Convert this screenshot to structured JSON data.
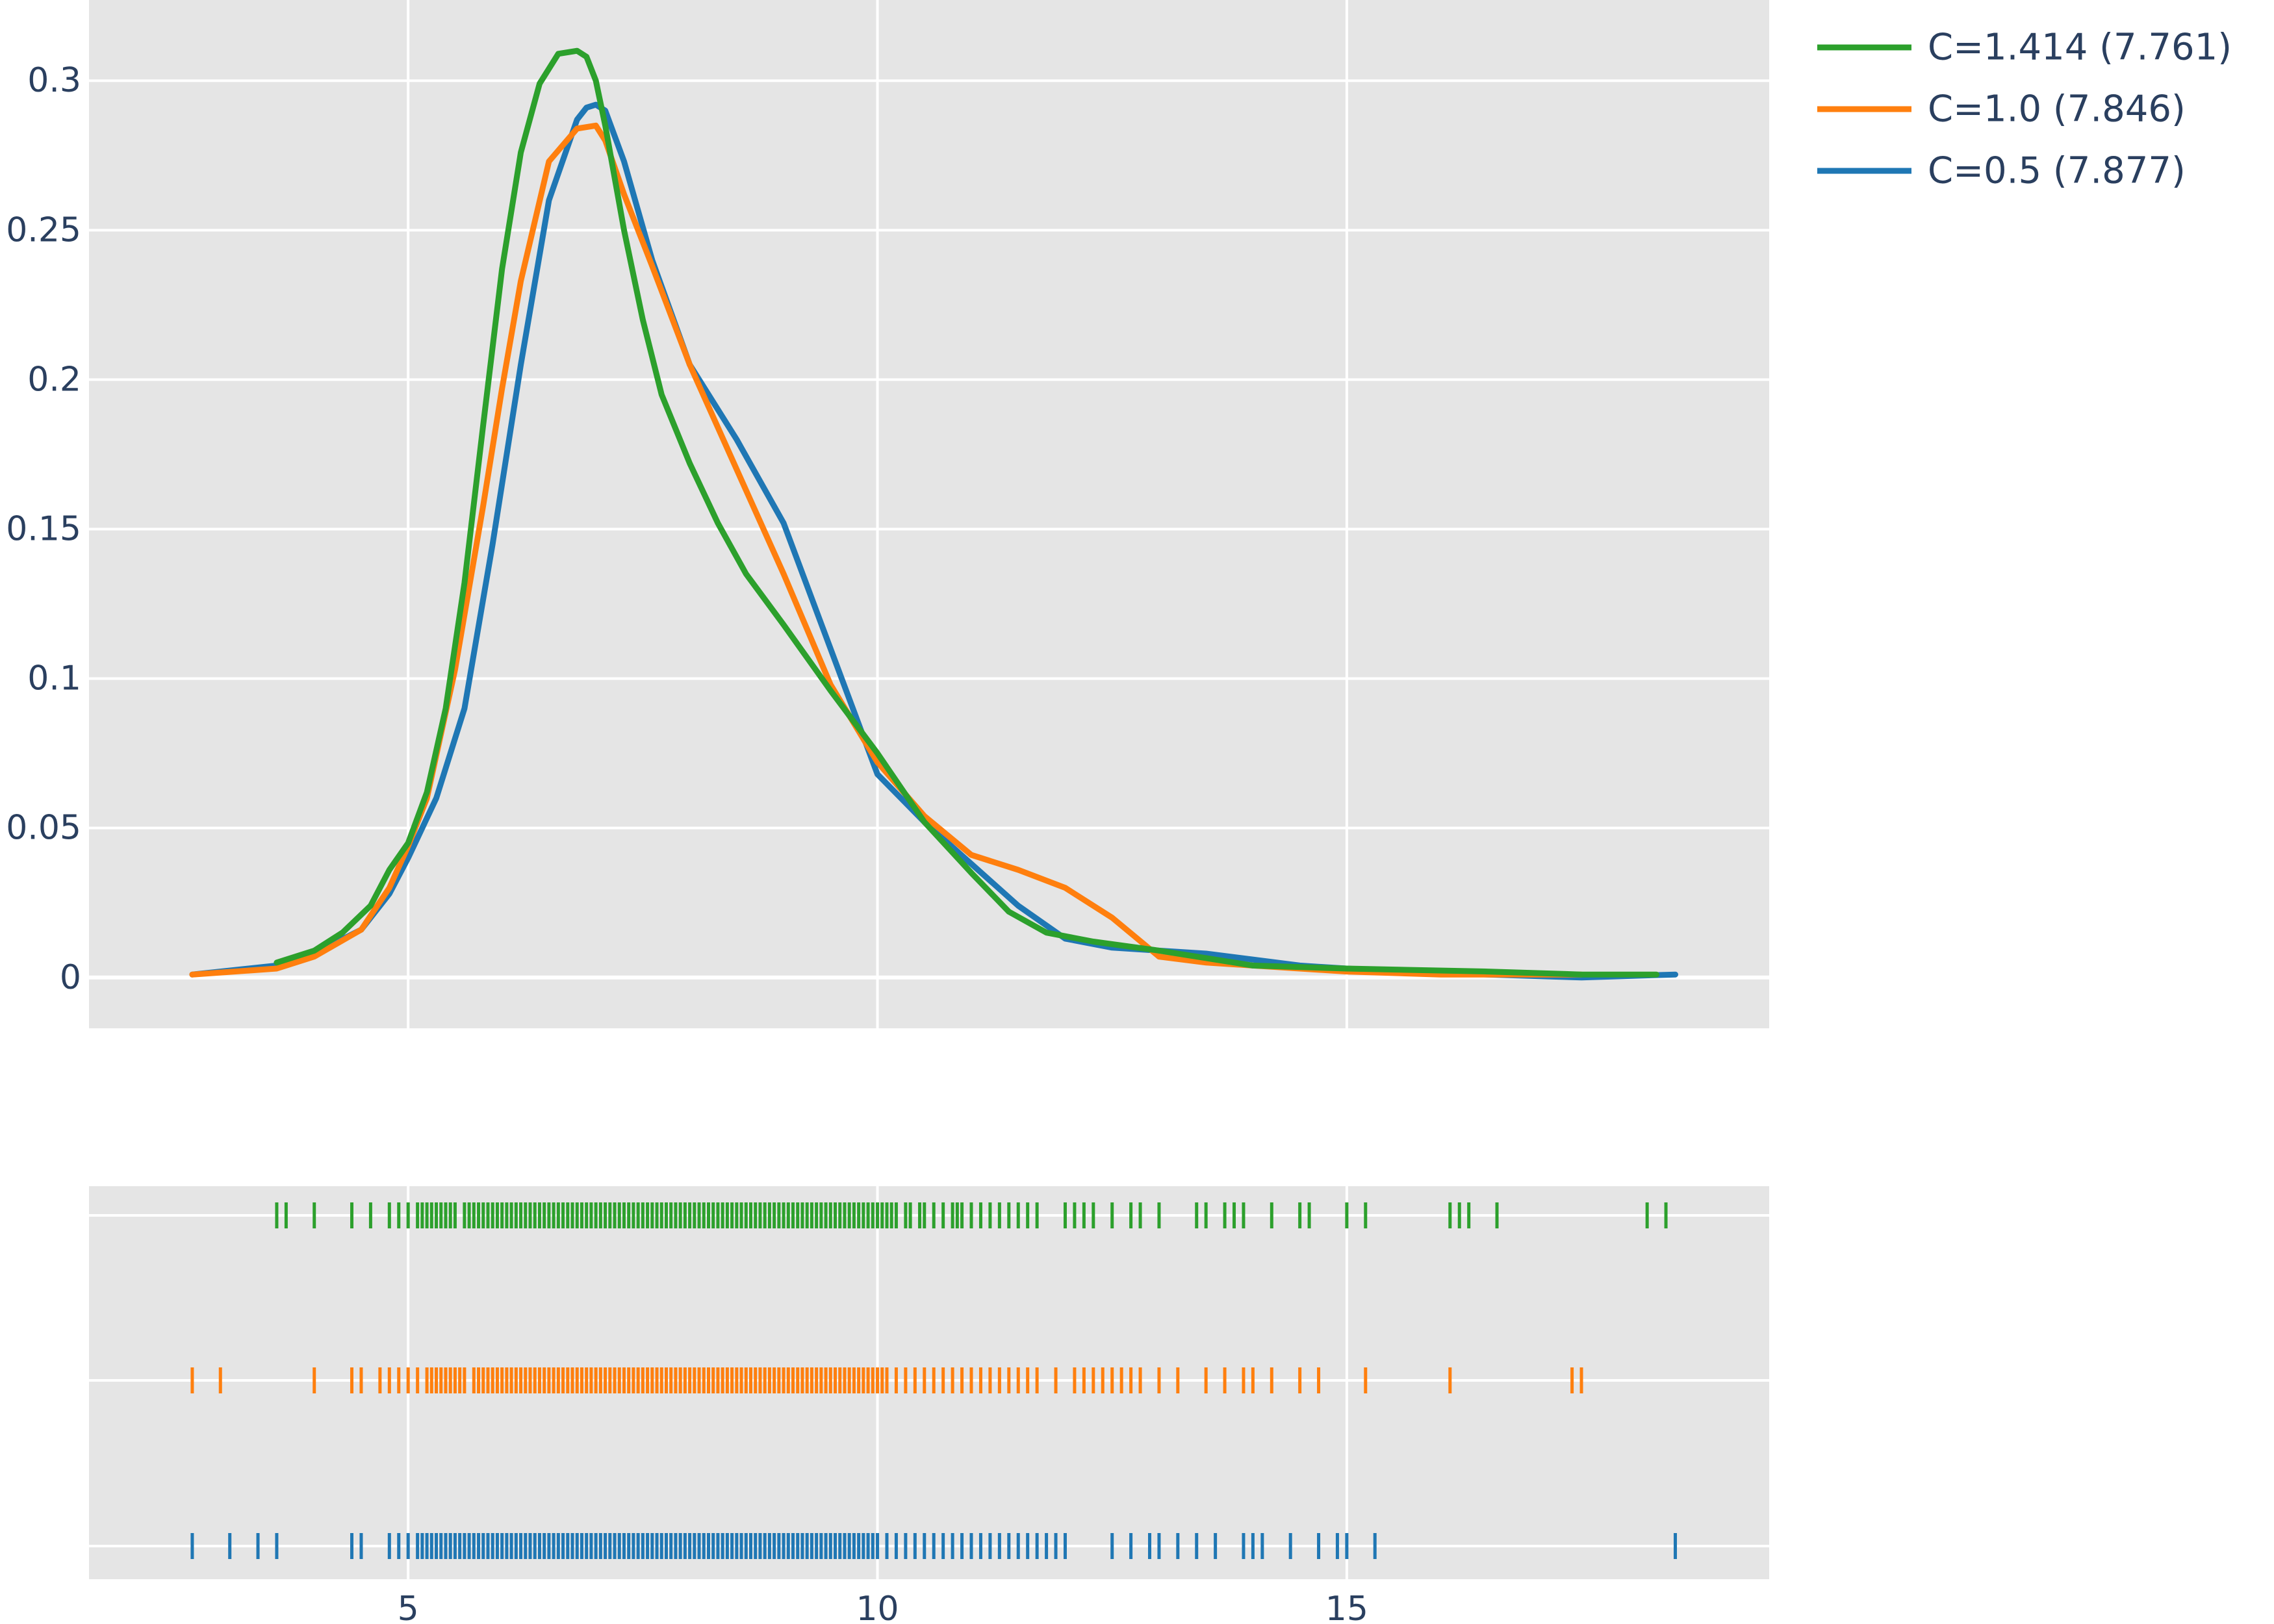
{
  "chart_data": {
    "type": "line",
    "title": "",
    "xlabel": "",
    "ylabel": "",
    "xlim": [
      1.6,
      19.5
    ],
    "ylim": [
      -0.017,
      0.327
    ],
    "grid": true,
    "legend_position": "top-right, outside plot",
    "x_ticks": [
      5,
      10,
      15
    ],
    "x_tick_labels": [
      "5",
      "10",
      "15"
    ],
    "y_ticks": [
      0,
      0.05,
      0.1,
      0.15,
      0.2,
      0.25,
      0.3
    ],
    "y_tick_labels": [
      "0",
      "0.05",
      "0.1",
      "0.15",
      "0.2",
      "0.25",
      "0.3"
    ],
    "series": [
      {
        "name": "C=1.414 (7.761)",
        "color": "#2ca02c",
        "x": [
          3.6,
          4.0,
          4.3,
          4.6,
          4.8,
          5.0,
          5.2,
          5.4,
          5.6,
          5.8,
          6.0,
          6.2,
          6.4,
          6.6,
          6.8,
          6.9,
          7.0,
          7.1,
          7.3,
          7.5,
          7.7,
          8.0,
          8.3,
          8.6,
          9.0,
          9.5,
          10.0,
          10.5,
          11.0,
          11.4,
          11.8,
          12.3,
          13.0,
          14.0,
          15.0,
          16.5,
          17.5,
          18.3
        ],
        "y": [
          0.005,
          0.009,
          0.015,
          0.024,
          0.036,
          0.045,
          0.062,
          0.09,
          0.132,
          0.185,
          0.237,
          0.276,
          0.299,
          0.309,
          0.31,
          0.308,
          0.3,
          0.285,
          0.25,
          0.22,
          0.195,
          0.172,
          0.152,
          0.135,
          0.118,
          0.096,
          0.075,
          0.052,
          0.035,
          0.022,
          0.015,
          0.012,
          0.009,
          0.004,
          0.003,
          0.002,
          0.001,
          0.001
        ]
      },
      {
        "name": "C=1.0 (7.846)",
        "color": "#ff7f0e",
        "x": [
          2.7,
          3.6,
          4.0,
          4.5,
          4.8,
          5.0,
          5.2,
          5.5,
          5.8,
          6.0,
          6.2,
          6.5,
          6.8,
          7.0,
          7.1,
          7.3,
          7.6,
          8.0,
          8.5,
          9.0,
          9.5,
          10.0,
          10.5,
          11.0,
          11.5,
          12.0,
          12.5,
          13.0,
          13.5,
          14.0,
          15.0,
          16.0,
          17.5
        ],
        "y": [
          0.001,
          0.003,
          0.007,
          0.016,
          0.03,
          0.044,
          0.06,
          0.103,
          0.158,
          0.197,
          0.233,
          0.273,
          0.284,
          0.285,
          0.28,
          0.262,
          0.238,
          0.205,
          0.17,
          0.135,
          0.098,
          0.072,
          0.054,
          0.041,
          0.036,
          0.03,
          0.02,
          0.007,
          0.005,
          0.004,
          0.002,
          0.001,
          0.001
        ]
      },
      {
        "name": "C=0.5 (7.877)",
        "color": "#1f77b4",
        "x": [
          2.7,
          3.6,
          4.0,
          4.5,
          4.8,
          5.0,
          5.3,
          5.6,
          5.9,
          6.2,
          6.5,
          6.8,
          6.9,
          7.0,
          7.1,
          7.3,
          7.6,
          8.0,
          8.5,
          9.0,
          9.5,
          10.0,
          10.5,
          11.0,
          11.5,
          12.0,
          12.5,
          13.5,
          14.5,
          15.5,
          16.5,
          17.5,
          18.5
        ],
        "y": [
          0.001,
          0.004,
          0.008,
          0.016,
          0.028,
          0.04,
          0.06,
          0.09,
          0.145,
          0.205,
          0.26,
          0.287,
          0.291,
          0.292,
          0.29,
          0.273,
          0.24,
          0.205,
          0.18,
          0.152,
          0.11,
          0.068,
          0.052,
          0.038,
          0.024,
          0.013,
          0.01,
          0.008,
          0.004,
          0.002,
          0.001,
          0.0,
          0.001
        ]
      }
    ],
    "rug": {
      "type": "rug",
      "series": [
        {
          "name": "C=1.414 (7.761)",
          "color": "#2ca02c",
          "x": [
            3.6,
            3.7,
            4.0,
            4.4,
            4.6,
            4.8,
            4.9,
            5.0,
            5.1,
            5.15,
            5.2,
            5.25,
            5.3,
            5.35,
            5.4,
            5.45,
            5.5,
            5.6,
            5.65,
            5.7,
            5.75,
            5.8,
            5.85,
            5.9,
            5.95,
            6.0,
            6.05,
            6.1,
            6.15,
            6.2,
            6.25,
            6.3,
            6.35,
            6.4,
            6.45,
            6.5,
            6.55,
            6.6,
            6.65,
            6.7,
            6.75,
            6.8,
            6.85,
            6.9,
            6.95,
            7.0,
            7.05,
            7.1,
            7.15,
            7.2,
            7.25,
            7.3,
            7.35,
            7.4,
            7.45,
            7.5,
            7.55,
            7.6,
            7.65,
            7.7,
            7.75,
            7.8,
            7.85,
            7.9,
            7.95,
            8.0,
            8.05,
            8.1,
            8.15,
            8.2,
            8.25,
            8.3,
            8.35,
            8.4,
            8.45,
            8.5,
            8.55,
            8.6,
            8.65,
            8.7,
            8.75,
            8.8,
            8.85,
            8.9,
            8.95,
            9.0,
            9.05,
            9.1,
            9.15,
            9.2,
            9.25,
            9.3,
            9.35,
            9.4,
            9.45,
            9.5,
            9.55,
            9.6,
            9.65,
            9.7,
            9.75,
            9.8,
            9.85,
            9.9,
            9.95,
            10.0,
            10.05,
            10.1,
            10.15,
            10.2,
            10.3,
            10.35,
            10.45,
            10.5,
            10.6,
            10.7,
            10.8,
            10.85,
            10.9,
            11.0,
            11.1,
            11.2,
            11.3,
            11.4,
            11.5,
            11.6,
            11.7,
            12.0,
            12.1,
            12.2,
            12.3,
            12.5,
            12.7,
            12.8,
            13.0,
            13.4,
            13.5,
            13.7,
            13.8,
            13.9,
            14.2,
            14.5,
            14.6,
            15.0,
            15.2,
            16.1,
            16.2,
            16.3,
            16.6,
            18.2,
            18.4
          ]
        },
        {
          "name": "C=1.0 (7.846)",
          "color": "#ff7f0e",
          "x": [
            2.7,
            3.0,
            4.0,
            4.4,
            4.5,
            4.7,
            4.8,
            4.9,
            5.0,
            5.1,
            5.2,
            5.25,
            5.3,
            5.35,
            5.4,
            5.45,
            5.5,
            5.55,
            5.6,
            5.7,
            5.75,
            5.8,
            5.85,
            5.9,
            5.95,
            6.0,
            6.05,
            6.1,
            6.15,
            6.2,
            6.25,
            6.3,
            6.35,
            6.4,
            6.45,
            6.5,
            6.55,
            6.6,
            6.65,
            6.7,
            6.75,
            6.8,
            6.85,
            6.9,
            6.95,
            7.0,
            7.05,
            7.1,
            7.15,
            7.2,
            7.25,
            7.3,
            7.35,
            7.4,
            7.45,
            7.5,
            7.55,
            7.6,
            7.65,
            7.7,
            7.75,
            7.8,
            7.85,
            7.9,
            7.95,
            8.0,
            8.05,
            8.1,
            8.15,
            8.2,
            8.25,
            8.3,
            8.35,
            8.4,
            8.45,
            8.5,
            8.55,
            8.6,
            8.65,
            8.7,
            8.75,
            8.8,
            8.85,
            8.9,
            8.95,
            9.0,
            9.05,
            9.1,
            9.15,
            9.2,
            9.25,
            9.3,
            9.35,
            9.4,
            9.45,
            9.5,
            9.55,
            9.6,
            9.65,
            9.7,
            9.75,
            9.8,
            9.85,
            9.9,
            9.95,
            10.0,
            10.05,
            10.1,
            10.2,
            10.3,
            10.4,
            10.5,
            10.6,
            10.7,
            10.8,
            10.9,
            11.0,
            11.1,
            11.2,
            11.3,
            11.4,
            11.5,
            11.6,
            11.7,
            11.9,
            12.1,
            12.2,
            12.3,
            12.4,
            12.5,
            12.6,
            12.7,
            12.8,
            13.0,
            13.2,
            13.5,
            13.7,
            13.9,
            14.0,
            14.2,
            14.5,
            14.7,
            15.2,
            16.1,
            17.4,
            17.5
          ]
        },
        {
          "name": "C=0.5 (7.877)",
          "color": "#1f77b4",
          "x": [
            2.7,
            3.1,
            3.4,
            3.6,
            4.4,
            4.5,
            4.8,
            4.9,
            5.0,
            5.1,
            5.15,
            5.2,
            5.25,
            5.3,
            5.35,
            5.4,
            5.45,
            5.5,
            5.55,
            5.6,
            5.65,
            5.7,
            5.75,
            5.8,
            5.85,
            5.9,
            5.95,
            6.0,
            6.05,
            6.1,
            6.15,
            6.2,
            6.25,
            6.3,
            6.35,
            6.4,
            6.45,
            6.5,
            6.55,
            6.6,
            6.65,
            6.7,
            6.75,
            6.8,
            6.85,
            6.9,
            6.95,
            7.0,
            7.05,
            7.1,
            7.15,
            7.2,
            7.25,
            7.3,
            7.35,
            7.4,
            7.45,
            7.5,
            7.55,
            7.6,
            7.65,
            7.7,
            7.75,
            7.8,
            7.85,
            7.9,
            7.95,
            8.0,
            8.05,
            8.1,
            8.15,
            8.2,
            8.25,
            8.3,
            8.35,
            8.4,
            8.45,
            8.5,
            8.55,
            8.6,
            8.65,
            8.7,
            8.75,
            8.8,
            8.85,
            8.9,
            8.95,
            9.0,
            9.05,
            9.1,
            9.15,
            9.2,
            9.25,
            9.3,
            9.35,
            9.4,
            9.45,
            9.5,
            9.55,
            9.6,
            9.65,
            9.7,
            9.75,
            9.8,
            9.85,
            9.9,
            9.95,
            10.0,
            10.1,
            10.2,
            10.3,
            10.4,
            10.5,
            10.6,
            10.7,
            10.8,
            10.9,
            11.0,
            11.1,
            11.2,
            11.3,
            11.4,
            11.5,
            11.6,
            11.7,
            11.8,
            11.9,
            12.0,
            12.5,
            12.7,
            12.9,
            13.0,
            13.2,
            13.4,
            13.6,
            13.9,
            14.0,
            14.1,
            14.4,
            14.7,
            14.9,
            15.0,
            15.3,
            18.5
          ]
        }
      ]
    }
  }
}
